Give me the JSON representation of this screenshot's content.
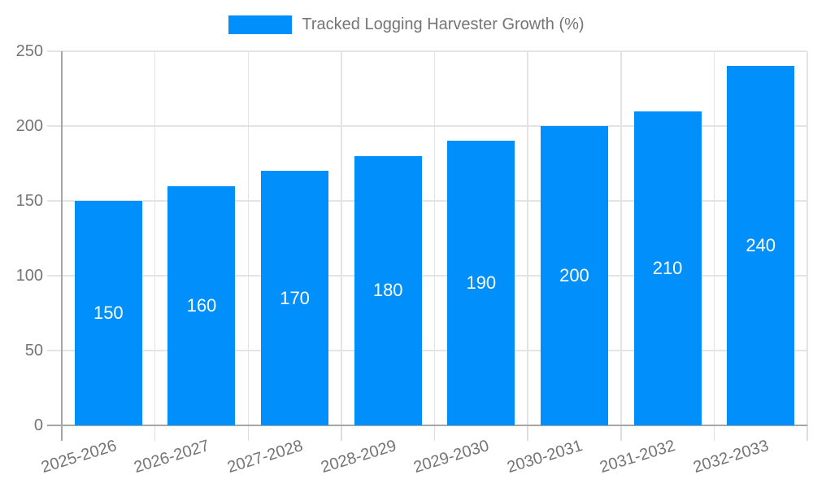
{
  "legend": {
    "label": "Tracked Logging Harvester Growth (%)"
  },
  "chart_data": {
    "type": "bar",
    "title": "Tracked Logging Harvester Growth (%)",
    "categories": [
      "2025-2026",
      "2026-2027",
      "2027-2028",
      "2028-2029",
      "2029-2030",
      "2030-2031",
      "2031-2032",
      "2032-2033"
    ],
    "series": [
      {
        "name": "Tracked Logging Harvester Growth (%)",
        "values": [
          150,
          160,
          170,
          180,
          190,
          200,
          210,
          240
        ]
      }
    ],
    "xlabel": "",
    "ylabel": "",
    "ylim": [
      0,
      250
    ],
    "yticks": [
      0,
      50,
      100,
      150,
      200,
      250
    ],
    "grid": true,
    "legend_position": "top-center",
    "bar_label_position": "inside-center",
    "colors": {
      "bar": "#008FFB",
      "grid": "#e4e4e4",
      "axis": "#a6a6a6",
      "tick": "#dddddd",
      "tick_text": "#757575",
      "bar_label_text": "#ffffff",
      "background": "#ffffff"
    }
  }
}
